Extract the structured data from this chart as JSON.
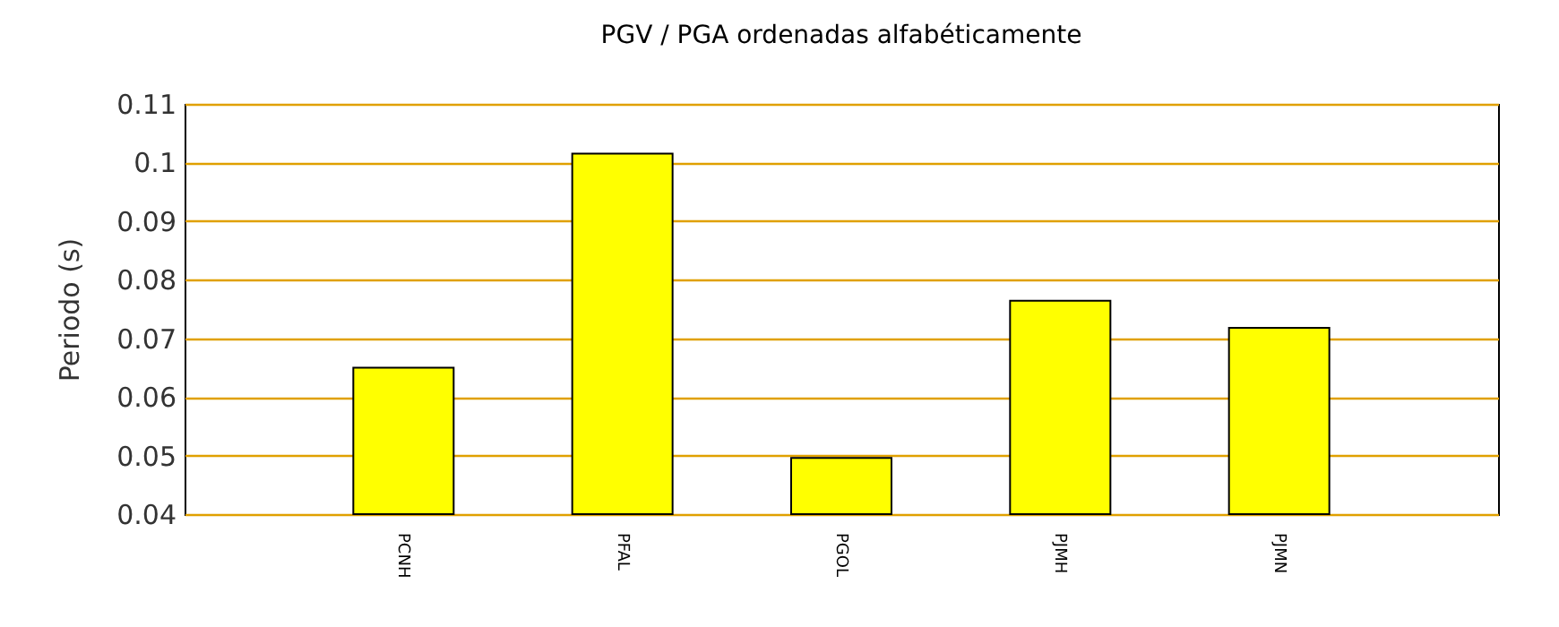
{
  "chart_data": {
    "type": "bar",
    "title": "PGV / PGA ordenadas alfabéticamente",
    "ylabel": "Periodo (s)",
    "categories": [
      "PCNH",
      "PFAL",
      "PGOL",
      "PJMH",
      "PJMN"
    ],
    "values": [
      0.065,
      0.1015,
      0.0496,
      0.0764,
      0.0718
    ],
    "color": "#ffff00",
    "ylim": [
      0.04,
      0.11
    ],
    "yticks": [
      0.04,
      0.05,
      0.06,
      0.07,
      0.08,
      0.09,
      0.1,
      0.11
    ],
    "grid": "y"
  }
}
